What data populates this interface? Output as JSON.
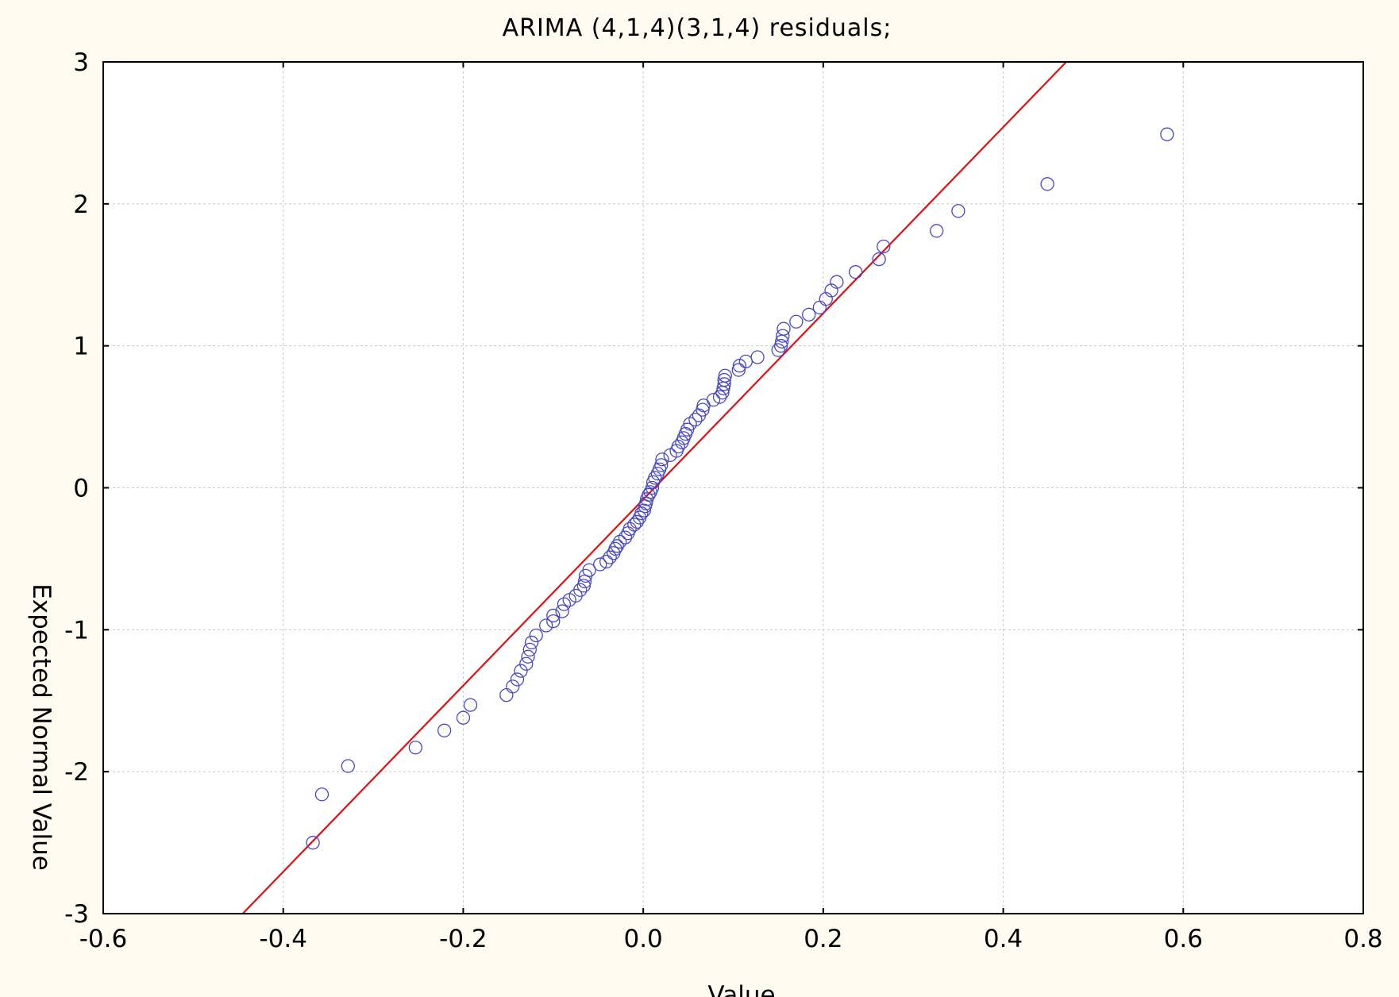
{
  "chart_data": {
    "type": "scatter",
    "title": "ARIMA (4,1,4)(3,1,4) residuals;",
    "xlabel": "Value",
    "ylabel": "Expected Normal Value",
    "xlim": [
      -0.6,
      0.8
    ],
    "ylim": [
      -3,
      3
    ],
    "xticks": [
      -0.6,
      -0.4,
      -0.2,
      0.0,
      0.2,
      0.4,
      0.6,
      0.8
    ],
    "xtick_labels": [
      "-0.6",
      "-0.4",
      "-0.2",
      "0.0",
      "0.2",
      "0.4",
      "0.6",
      "0.8"
    ],
    "yticks": [
      -3,
      -2,
      -1,
      0,
      1,
      2,
      3
    ],
    "ytick_labels": [
      "-3",
      "-2",
      "-1",
      "0",
      "1",
      "2",
      "3"
    ],
    "grid": true,
    "colors": {
      "points": "#4848c8",
      "line": "#dd1111",
      "background": "#fffbf0"
    },
    "series": [
      {
        "type": "scatter",
        "marker": "open-circle",
        "points": [
          [
            -0.367,
            -2.5
          ],
          [
            -0.357,
            -2.16
          ],
          [
            -0.328,
            -1.96
          ],
          [
            -0.253,
            -1.83
          ],
          [
            -0.221,
            -1.71
          ],
          [
            -0.2,
            -1.62
          ],
          [
            -0.192,
            -1.53
          ],
          [
            -0.152,
            -1.46
          ],
          [
            -0.145,
            -1.4
          ],
          [
            -0.14,
            -1.35
          ],
          [
            -0.136,
            -1.29
          ],
          [
            -0.13,
            -1.24
          ],
          [
            -0.128,
            -1.19
          ],
          [
            -0.126,
            -1.14
          ],
          [
            -0.124,
            -1.09
          ],
          [
            -0.119,
            -1.04
          ],
          [
            -0.108,
            -0.97
          ],
          [
            -0.1,
            -0.94
          ],
          [
            -0.1,
            -0.9
          ],
          [
            -0.09,
            -0.87
          ],
          [
            -0.088,
            -0.82
          ],
          [
            -0.082,
            -0.79
          ],
          [
            -0.075,
            -0.76
          ],
          [
            -0.07,
            -0.72
          ],
          [
            -0.066,
            -0.69
          ],
          [
            -0.065,
            -0.66
          ],
          [
            -0.064,
            -0.62
          ],
          [
            -0.06,
            -0.58
          ],
          [
            -0.048,
            -0.54
          ],
          [
            -0.041,
            -0.52
          ],
          [
            -0.037,
            -0.49
          ],
          [
            -0.033,
            -0.46
          ],
          [
            -0.031,
            -0.43
          ],
          [
            -0.029,
            -0.41
          ],
          [
            -0.026,
            -0.38
          ],
          [
            -0.02,
            -0.35
          ],
          [
            -0.017,
            -0.32
          ],
          [
            -0.015,
            -0.29
          ],
          [
            -0.01,
            -0.26
          ],
          [
            -0.007,
            -0.24
          ],
          [
            -0.004,
            -0.21
          ],
          [
            -0.002,
            -0.18
          ],
          [
            0.001,
            -0.16
          ],
          [
            0.002,
            -0.13
          ],
          [
            0.003,
            -0.11
          ],
          [
            0.004,
            -0.08
          ],
          [
            0.006,
            -0.05
          ],
          [
            0.008,
            -0.03
          ],
          [
            0.01,
            0.0
          ],
          [
            0.011,
            0.04
          ],
          [
            0.013,
            0.07
          ],
          [
            0.016,
            0.1
          ],
          [
            0.018,
            0.13
          ],
          [
            0.02,
            0.16
          ],
          [
            0.021,
            0.2
          ],
          [
            0.03,
            0.23
          ],
          [
            0.037,
            0.26
          ],
          [
            0.039,
            0.29
          ],
          [
            0.043,
            0.32
          ],
          [
            0.045,
            0.35
          ],
          [
            0.047,
            0.38
          ],
          [
            0.049,
            0.41
          ],
          [
            0.052,
            0.45
          ],
          [
            0.058,
            0.48
          ],
          [
            0.062,
            0.51
          ],
          [
            0.066,
            0.55
          ],
          [
            0.067,
            0.58
          ],
          [
            0.078,
            0.62
          ],
          [
            0.085,
            0.64
          ],
          [
            0.088,
            0.67
          ],
          [
            0.089,
            0.7
          ],
          [
            0.09,
            0.73
          ],
          [
            0.09,
            0.76
          ],
          [
            0.091,
            0.79
          ],
          [
            0.106,
            0.83
          ],
          [
            0.107,
            0.86
          ],
          [
            0.114,
            0.89
          ],
          [
            0.127,
            0.92
          ],
          [
            0.15,
            0.97
          ],
          [
            0.153,
            1.0
          ],
          [
            0.154,
            1.03
          ],
          [
            0.155,
            1.07
          ],
          [
            0.156,
            1.12
          ],
          [
            0.17,
            1.17
          ],
          [
            0.184,
            1.22
          ],
          [
            0.196,
            1.27
          ],
          [
            0.203,
            1.33
          ],
          [
            0.209,
            1.39
          ],
          [
            0.215,
            1.45
          ],
          [
            0.236,
            1.52
          ],
          [
            0.262,
            1.61
          ],
          [
            0.267,
            1.7
          ],
          [
            0.326,
            1.81
          ],
          [
            0.35,
            1.95
          ],
          [
            0.449,
            2.14
          ],
          [
            0.582,
            2.49
          ]
        ]
      },
      {
        "type": "line",
        "points": [
          [
            -0.445,
            -3.0
          ],
          [
            0.47,
            3.0
          ]
        ]
      }
    ]
  }
}
